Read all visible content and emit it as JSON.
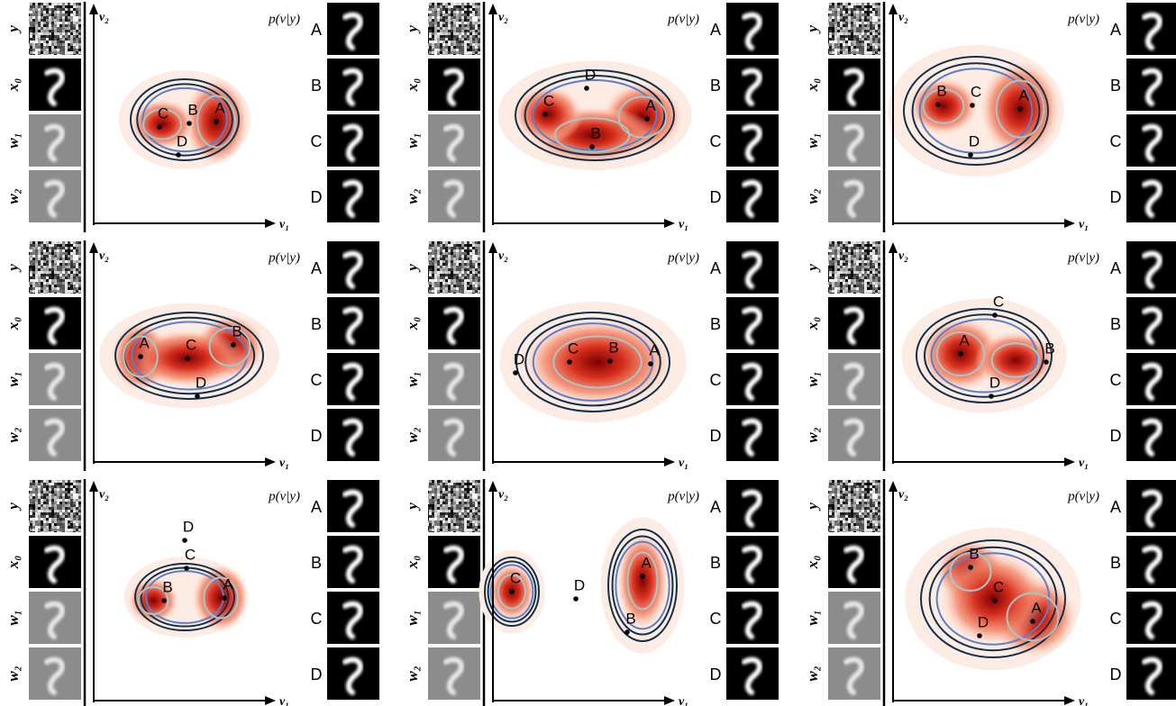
{
  "labels": {
    "rows": [
      "y",
      "x₀",
      "w₁",
      "w₂"
    ],
    "axis_x": "v₁",
    "axis_y": "v₂",
    "density": "p(v|y)",
    "points": [
      "A",
      "B",
      "C",
      "D"
    ]
  }
}
